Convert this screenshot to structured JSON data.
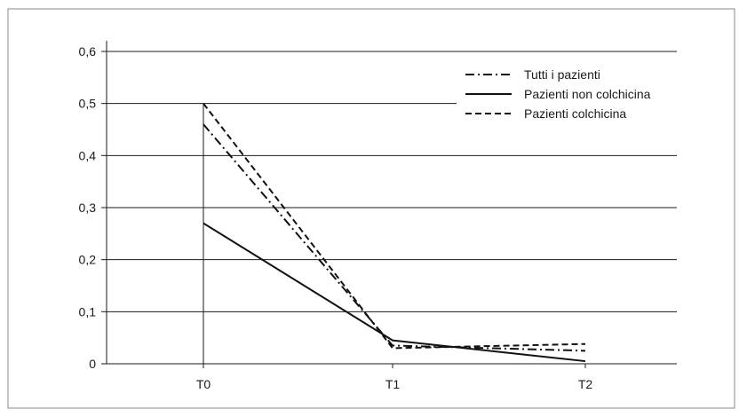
{
  "chart_data": {
    "type": "line",
    "title": "",
    "xlabel": "",
    "ylabel": "",
    "categories": [
      "T0",
      "T1",
      "T2"
    ],
    "ylim": [
      0,
      0.6
    ],
    "yticks": [
      "0",
      "0,1",
      "0,2",
      "0,3",
      "0,4",
      "0,5",
      "0,6"
    ],
    "grid": true,
    "legend_position": "top-right",
    "series": [
      {
        "name": "Tutti i pazienti",
        "values": [
          0.46,
          0.035,
          0.025
        ],
        "style": "dash-dot",
        "color": "#111111"
      },
      {
        "name": "Pazienti non colchicina",
        "values": [
          0.27,
          0.045,
          0.005
        ],
        "style": "solid",
        "color": "#111111"
      },
      {
        "name": "Pazienti colchicina",
        "values": [
          0.5,
          0.03,
          0.038
        ],
        "style": "dashed",
        "color": "#111111"
      }
    ]
  }
}
